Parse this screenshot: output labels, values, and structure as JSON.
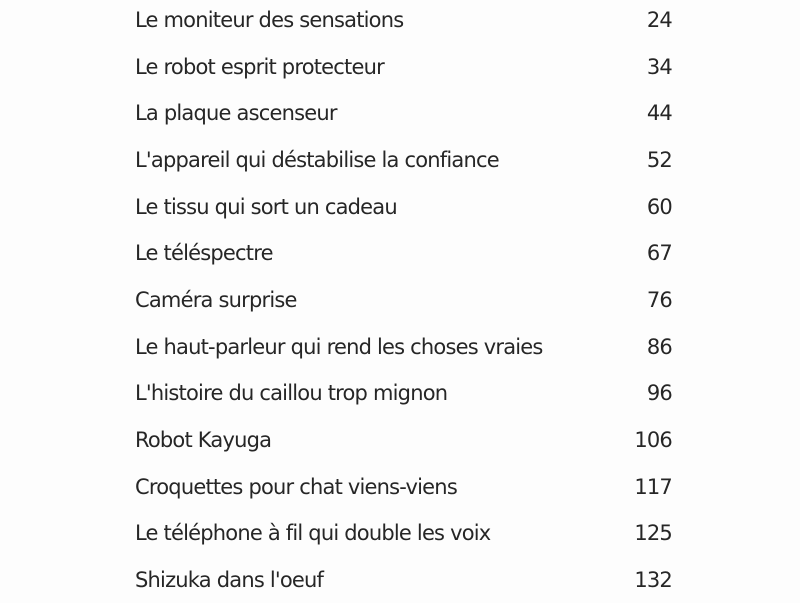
{
  "toc": {
    "entries": [
      {
        "title": "Le moniteur des sensations",
        "page": "24"
      },
      {
        "title": "Le robot esprit protecteur",
        "page": "34"
      },
      {
        "title": "La plaque ascenseur",
        "page": "44"
      },
      {
        "title": "L'appareil qui déstabilise la confiance",
        "page": "52"
      },
      {
        "title": "Le tissu qui sort un cadeau",
        "page": "60"
      },
      {
        "title": "Le téléspectre",
        "page": "67"
      },
      {
        "title": "Caméra surprise",
        "page": "76"
      },
      {
        "title": "Le haut-parleur qui rend les choses vraies",
        "page": "86"
      },
      {
        "title": "L'histoire du caillou trop mignon",
        "page": "96"
      },
      {
        "title": "Robot Kayuga",
        "page": "106"
      },
      {
        "title": "Croquettes pour chat viens-viens",
        "page": "117"
      },
      {
        "title": "Le téléphone à fil qui double les voix",
        "page": "125"
      },
      {
        "title": "Shizuka dans l'oeuf",
        "page": "132"
      }
    ]
  }
}
